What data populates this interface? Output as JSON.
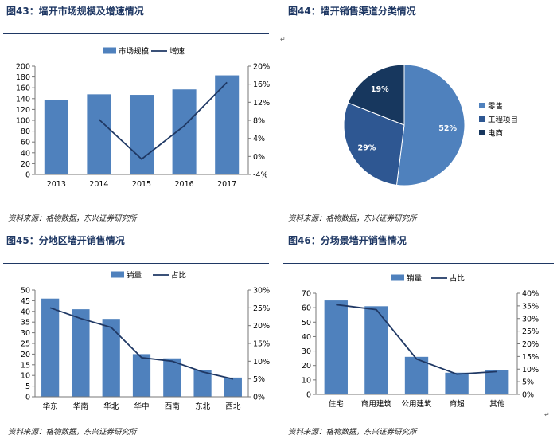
{
  "panels": [
    {
      "title": "图43：墙开市场规模及增速情况",
      "source": "资料来源：格物数据，东兴证券研究所"
    },
    {
      "title": "图44：墙开销售渠道分类情况",
      "source": "资料来源：格物数据，东兴证券研究所"
    },
    {
      "title": "图45：分地区墙开销售情况",
      "source": "资料来源：格物数据，东兴证券研究所"
    },
    {
      "title": "图46：分场景墙开销售情况",
      "source": "资料来源：格物数据，东兴证券研究所"
    }
  ],
  "marks": {
    "return": "↵"
  },
  "chart_data": [
    {
      "type": "bar",
      "categories": [
        "2013",
        "2014",
        "2015",
        "2016",
        "2017"
      ],
      "series": [
        {
          "name": "市场规模",
          "type": "bar",
          "axis": "left",
          "values": [
            137,
            148,
            147,
            157,
            183
          ],
          "color": "#4F81BD"
        },
        {
          "name": "增速",
          "type": "line",
          "axis": "right",
          "values": [
            null,
            8.2,
            -0.6,
            6.8,
            16.4
          ],
          "color": "#1F3864"
        }
      ],
      "ylim": [
        0,
        200
      ],
      "yticks": [
        "0",
        "20",
        "40",
        "60",
        "80",
        "100",
        "120",
        "140",
        "160",
        "180",
        "200"
      ],
      "y2lim": [
        -4,
        20
      ],
      "y2ticks": [
        "-4%",
        "0%",
        "4%",
        "8%",
        "12%",
        "16%",
        "20%"
      ],
      "legend": "top-center",
      "grid": false
    },
    {
      "type": "pie",
      "labels": [
        "零售",
        "工程项目",
        "电商"
      ],
      "values": [
        52,
        29,
        19
      ],
      "data_labels": [
        "52%",
        "29%",
        "19%"
      ],
      "colors": [
        "#4F81BD",
        "#2E5792",
        "#17375E"
      ],
      "legend": "right"
    },
    {
      "type": "bar",
      "categories": [
        "华东",
        "华南",
        "华北",
        "华中",
        "西南",
        "东北",
        "西北"
      ],
      "series": [
        {
          "name": "销量",
          "type": "bar",
          "axis": "left",
          "values": [
            46,
            41,
            36.5,
            20,
            18,
            12.5,
            9
          ],
          "color": "#4F81BD"
        },
        {
          "name": "占比",
          "type": "line",
          "axis": "right",
          "values": [
            25,
            22,
            19.5,
            11,
            10,
            7,
            5
          ],
          "color": "#1F3864"
        }
      ],
      "ylim": [
        0,
        50
      ],
      "yticks": [
        "0",
        "5",
        "10",
        "15",
        "20",
        "25",
        "30",
        "35",
        "40",
        "45",
        "50"
      ],
      "y2lim": [
        0,
        30
      ],
      "y2ticks": [
        "0%",
        "5%",
        "10%",
        "15%",
        "20%",
        "25%",
        "30%"
      ],
      "legend": "top-center",
      "grid": false
    },
    {
      "type": "bar",
      "categories": [
        "住宅",
        "商用建筑",
        "公用建筑",
        "商超",
        "其他"
      ],
      "series": [
        {
          "name": "销量",
          "type": "bar",
          "axis": "left",
          "values": [
            65,
            61,
            26,
            15,
            17
          ],
          "color": "#4F81BD"
        },
        {
          "name": "占比",
          "type": "line",
          "axis": "right",
          "values": [
            35.5,
            33.5,
            14,
            8,
            9
          ],
          "color": "#1F3864"
        }
      ],
      "ylim": [
        0,
        70
      ],
      "yticks": [
        "0",
        "10",
        "20",
        "30",
        "40",
        "50",
        "60",
        "70"
      ],
      "y2lim": [
        0,
        40
      ],
      "y2ticks": [
        "0%",
        "5%",
        "10%",
        "15%",
        "20%",
        "25%",
        "30%",
        "35%",
        "40%"
      ],
      "legend": "top-center",
      "grid": false
    }
  ]
}
